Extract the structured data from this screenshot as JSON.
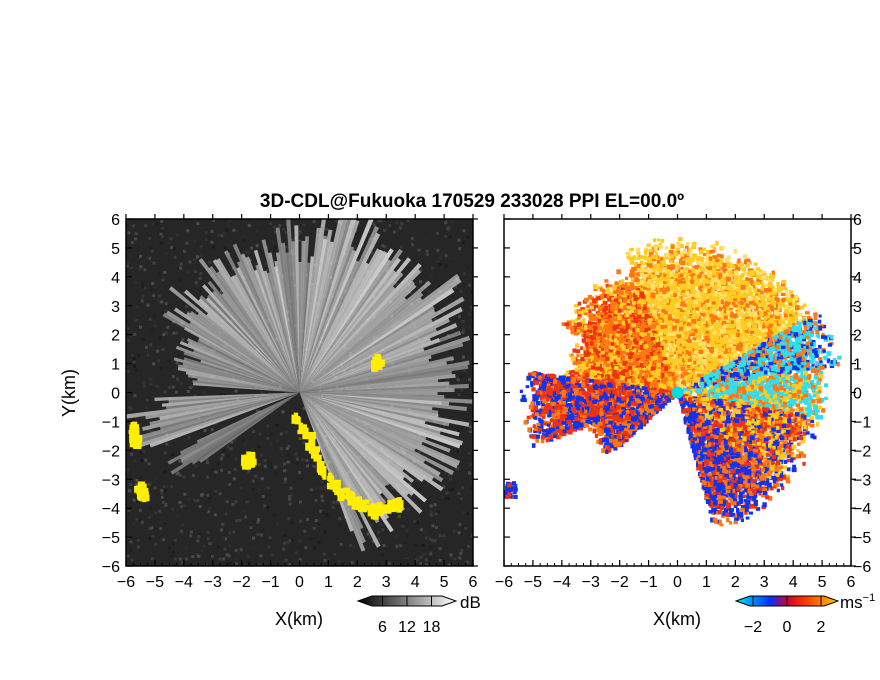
{
  "figure": {
    "title": "3D-CDL@Fukuoka 170529 233028 PPI EL=00.0º"
  },
  "chart_data": [
    {
      "type": "heatmap",
      "panel": "left",
      "quantity": "dB",
      "xlabel": "X(km)",
      "ylabel": "Y(km)",
      "xlim": [
        -6,
        6
      ],
      "ylim": [
        -6,
        6
      ],
      "xticks": [
        "−6",
        "−5",
        "−4",
        "−3",
        "−2",
        "−1",
        "0",
        "1",
        "2",
        "3",
        "4",
        "5",
        "6"
      ],
      "yticks": [
        "6",
        "5",
        "4",
        "3",
        "2",
        "1",
        "0",
        "−1",
        "−2",
        "−3",
        "−4",
        "−5",
        "−6"
      ],
      "colorbar": {
        "unit": "dB",
        "ticks": [
          6,
          12,
          18
        ],
        "range": [
          0,
          24
        ],
        "colors": [
          "#000000",
          "#ffffff"
        ]
      },
      "flag_color": "#ffee00",
      "flag_regions": [
        [
          [
            -0.3,
            -0.6
          ],
          [
            0.4,
            -1.8
          ],
          [
            0.9,
            -2.9
          ],
          [
            1.4,
            -3.4
          ],
          [
            2.0,
            -3.7
          ],
          [
            2.5,
            -4.0
          ],
          [
            3.3,
            -3.7
          ]
        ],
        [
          [
            -5.8,
            -1.1
          ],
          [
            -5.8,
            -1.5
          ]
        ],
        [
          [
            -5.7,
            -3.1
          ],
          [
            -5.5,
            -3.4
          ]
        ],
        [
          [
            -1.7,
            -2.1
          ],
          [
            -1.9,
            -2.3
          ]
        ],
        [
          [
            2.6,
            1.2
          ]
        ]
      ]
    },
    {
      "type": "heatmap",
      "panel": "right",
      "quantity": "Doppler velocity",
      "xlabel": "X(km)",
      "xlim": [
        -6,
        6
      ],
      "ylim": [
        -6,
        6
      ],
      "xticks": [
        "−6",
        "−5",
        "−4",
        "−3",
        "−2",
        "−1",
        "0",
        "1",
        "2",
        "3",
        "4",
        "5",
        "6"
      ],
      "colorbar": {
        "unit": "ms",
        "unit_exponent": "−1",
        "ticks": [
          "−2",
          "0",
          "2"
        ],
        "range": [
          -3,
          3
        ],
        "colors": [
          "#00e5ff",
          "#0033ff",
          "#ff3300",
          "#ffcc00"
        ]
      },
      "radar_site": {
        "x": 0,
        "y": 0,
        "color": "#00dddd"
      }
    }
  ]
}
